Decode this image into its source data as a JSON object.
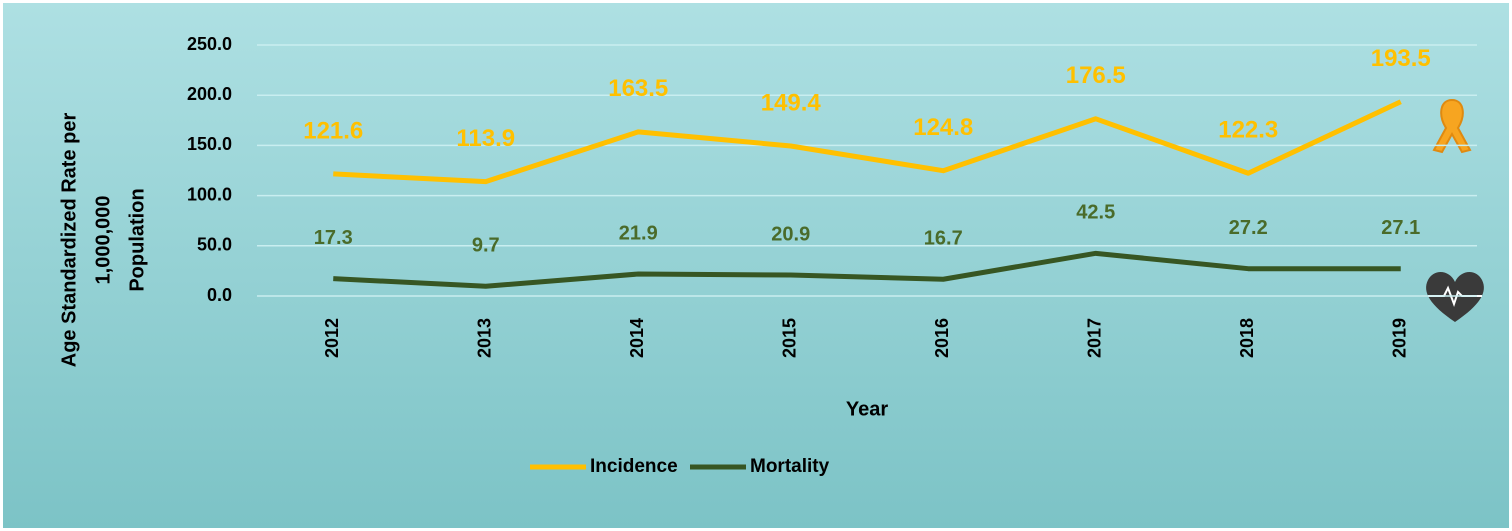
{
  "chart_data": {
    "type": "line",
    "ylabel": [
      "Age Standardized Rate per",
      "1,000,000",
      "Population"
    ],
    "xlabel": "Year",
    "categories": [
      "2012",
      "2013",
      "2014",
      "2015",
      "2016",
      "2017",
      "2018",
      "2019"
    ],
    "series": [
      {
        "name": "Incidence",
        "color": "#FFC000",
        "values": [
          121.6,
          113.9,
          163.5,
          149.4,
          124.8,
          176.5,
          122.3,
          193.5
        ]
      },
      {
        "name": "Mortality",
        "color": "#375623",
        "values": [
          17.3,
          9.7,
          21.9,
          20.9,
          16.7,
          42.5,
          27.2,
          27.1
        ]
      }
    ],
    "ylim": [
      0,
      250
    ],
    "yticks": [
      {
        "value": 0,
        "label": "0.0"
      },
      {
        "value": 50,
        "label": "50.0"
      },
      {
        "value": 100,
        "label": "100.0"
      },
      {
        "value": 150,
        "label": "150.0"
      },
      {
        "value": 200,
        "label": "200.0"
      },
      {
        "value": 250,
        "label": "250.0"
      }
    ],
    "grid": true,
    "legend": "bottom"
  }
}
